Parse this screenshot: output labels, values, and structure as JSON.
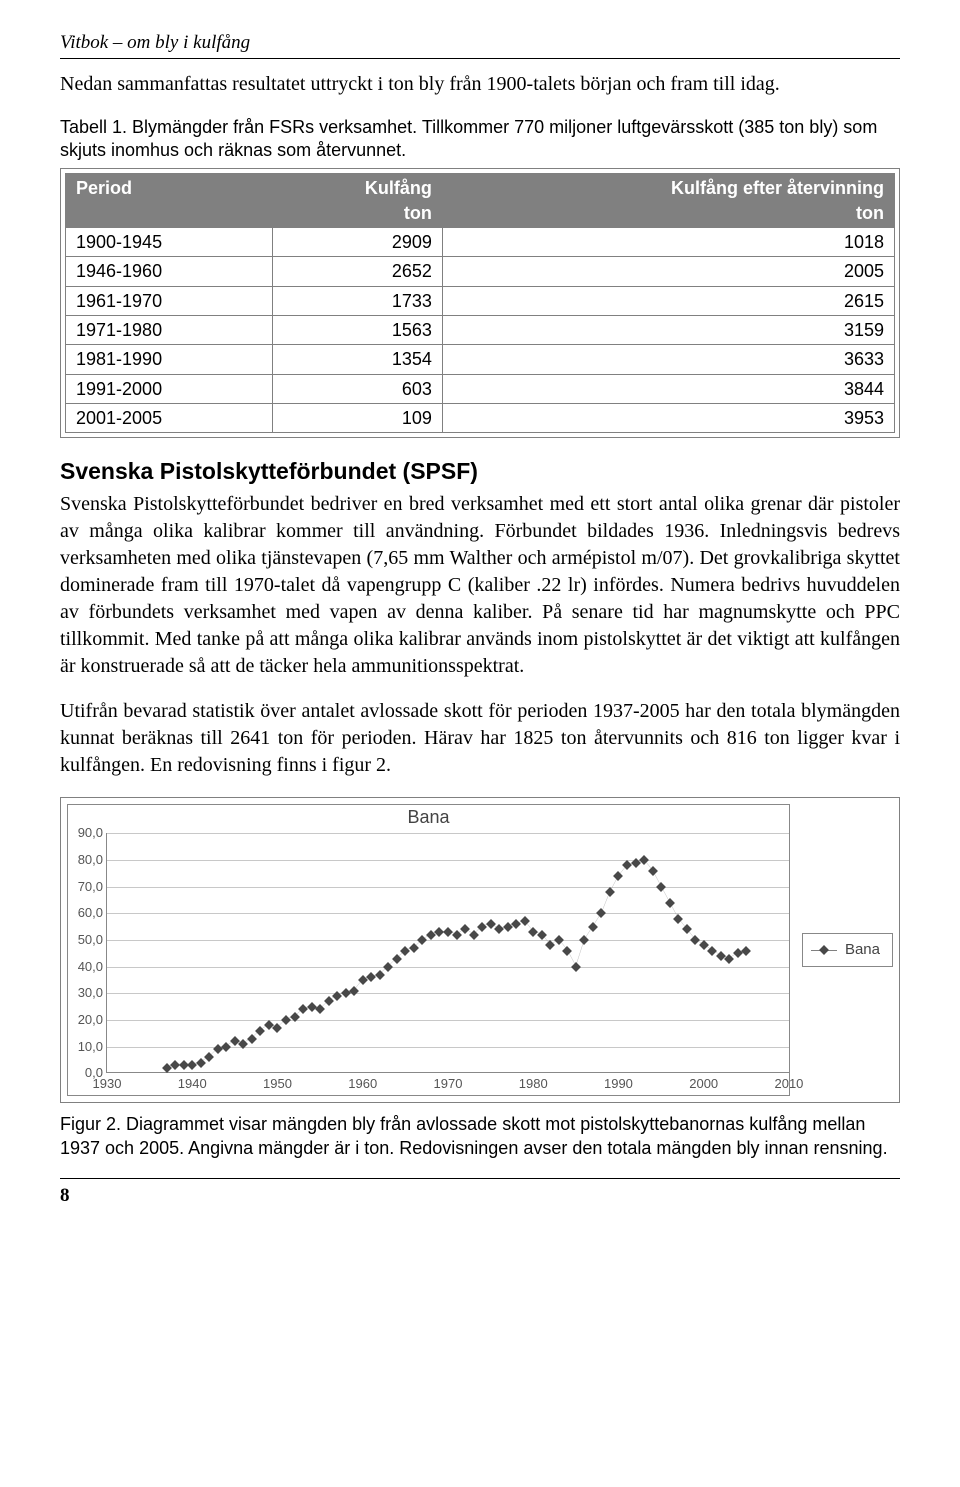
{
  "running_header": "Vitbok – om bly i kulfång",
  "intro": "Nedan sammanfattas resultatet uttryckt i ton bly från 1900-talets början och fram till idag.",
  "table_caption": "Tabell 1. Blymängder från FSRs verksamhet. Tillkommer 770 miljoner luftgevärsskott (385 ton bly) som skjuts inomhus och räknas som återvunnet.",
  "table": {
    "header_bg": "#808080",
    "header_color": "#ffffff",
    "border_color": "#808080",
    "columns": [
      "Period",
      "Kulfång\nton",
      "Kulfång efter återvinning\nton"
    ],
    "rows": [
      [
        "1900-1945",
        "2909",
        "1018"
      ],
      [
        "1946-1960",
        "2652",
        "2005"
      ],
      [
        "1961-1970",
        "1733",
        "2615"
      ],
      [
        "1971-1980",
        "1563",
        "3159"
      ],
      [
        "1981-1990",
        "1354",
        "3633"
      ],
      [
        "1991-2000",
        "603",
        "3844"
      ],
      [
        "2001-2005",
        "109",
        "3953"
      ]
    ]
  },
  "section_heading": "Svenska Pistolskytteförbundet (SPSF)",
  "body1": "Svenska Pistolskytteförbundet bedriver en bred verksamhet med ett stort antal olika grenar där pistoler av många olika kalibrar kommer till användning. Förbundet bildades 1936. Inledningsvis bedrevs verksamheten med olika tjänstevapen (7,65 mm Walther och armépistol m/07). Det grovkalibriga skyttet dominerade fram till 1970-talet då vapengrupp C (kaliber .22 lr) infördes. Numera bedrivs huvuddelen av förbundets verksamhet med vapen av denna kaliber. På senare tid har magnumskytte och PPC tillkommit. Med tanke på att många olika kalibrar används inom pistolskyttet är det viktigt att kulfången är konstruerade så att de täcker hela ammunitionsspektrat.",
  "body2": "Utifrån bevarad statistik över antalet avlossade skott för perioden 1937-2005 har den totala blymängden kunnat beräknas till 2641 ton för perioden. Härav har 1825 ton återvunnits och 816 ton ligger kvar i kulfången. En redovisning finns i figur 2.",
  "chart": {
    "title": "Bana",
    "legend_label": "Bana",
    "type": "line",
    "marker": "diamond",
    "marker_color": "#484848",
    "line_color": "#808080",
    "grid_color": "#c8c8c8",
    "axis_color": "#888888",
    "text_color": "#555555",
    "background": "#ffffff",
    "title_fontsize": 18,
    "label_fontsize": 13,
    "xlim": [
      1930,
      2010
    ],
    "ylim": [
      0,
      90
    ],
    "ytick_step": 10,
    "yticks": [
      "0,0",
      "10,0",
      "20,0",
      "30,0",
      "40,0",
      "50,0",
      "60,0",
      "70,0",
      "80,0",
      "90,0"
    ],
    "xticks": [
      1930,
      1940,
      1950,
      1960,
      1970,
      1980,
      1990,
      2000,
      2010
    ],
    "points": [
      {
        "x": 1937,
        "y": 2
      },
      {
        "x": 1938,
        "y": 3
      },
      {
        "x": 1939,
        "y": 3
      },
      {
        "x": 1940,
        "y": 3
      },
      {
        "x": 1941,
        "y": 4
      },
      {
        "x": 1942,
        "y": 6
      },
      {
        "x": 1943,
        "y": 9
      },
      {
        "x": 1944,
        "y": 10
      },
      {
        "x": 1945,
        "y": 12
      },
      {
        "x": 1946,
        "y": 11
      },
      {
        "x": 1947,
        "y": 13
      },
      {
        "x": 1948,
        "y": 16
      },
      {
        "x": 1949,
        "y": 18
      },
      {
        "x": 1950,
        "y": 17
      },
      {
        "x": 1951,
        "y": 20
      },
      {
        "x": 1952,
        "y": 21
      },
      {
        "x": 1953,
        "y": 24
      },
      {
        "x": 1954,
        "y": 25
      },
      {
        "x": 1955,
        "y": 24
      },
      {
        "x": 1956,
        "y": 27
      },
      {
        "x": 1957,
        "y": 29
      },
      {
        "x": 1958,
        "y": 30
      },
      {
        "x": 1959,
        "y": 31
      },
      {
        "x": 1960,
        "y": 35
      },
      {
        "x": 1961,
        "y": 36
      },
      {
        "x": 1962,
        "y": 37
      },
      {
        "x": 1963,
        "y": 40
      },
      {
        "x": 1964,
        "y": 43
      },
      {
        "x": 1965,
        "y": 46
      },
      {
        "x": 1966,
        "y": 47
      },
      {
        "x": 1967,
        "y": 50
      },
      {
        "x": 1968,
        "y": 52
      },
      {
        "x": 1969,
        "y": 53
      },
      {
        "x": 1970,
        "y": 53
      },
      {
        "x": 1971,
        "y": 52
      },
      {
        "x": 1972,
        "y": 54
      },
      {
        "x": 1973,
        "y": 52
      },
      {
        "x": 1974,
        "y": 55
      },
      {
        "x": 1975,
        "y": 56
      },
      {
        "x": 1976,
        "y": 54
      },
      {
        "x": 1977,
        "y": 55
      },
      {
        "x": 1978,
        "y": 56
      },
      {
        "x": 1979,
        "y": 57
      },
      {
        "x": 1980,
        "y": 53
      },
      {
        "x": 1981,
        "y": 52
      },
      {
        "x": 1982,
        "y": 48
      },
      {
        "x": 1983,
        "y": 50
      },
      {
        "x": 1984,
        "y": 46
      },
      {
        "x": 1985,
        "y": 40
      },
      {
        "x": 1986,
        "y": 50
      },
      {
        "x": 1987,
        "y": 55
      },
      {
        "x": 1988,
        "y": 60
      },
      {
        "x": 1989,
        "y": 68
      },
      {
        "x": 1990,
        "y": 74
      },
      {
        "x": 1991,
        "y": 78
      },
      {
        "x": 1992,
        "y": 79
      },
      {
        "x": 1993,
        "y": 80
      },
      {
        "x": 1994,
        "y": 76
      },
      {
        "x": 1995,
        "y": 70
      },
      {
        "x": 1996,
        "y": 64
      },
      {
        "x": 1997,
        "y": 58
      },
      {
        "x": 1998,
        "y": 54
      },
      {
        "x": 1999,
        "y": 50
      },
      {
        "x": 2000,
        "y": 48
      },
      {
        "x": 2001,
        "y": 46
      },
      {
        "x": 2002,
        "y": 44
      },
      {
        "x": 2003,
        "y": 43
      },
      {
        "x": 2004,
        "y": 45
      },
      {
        "x": 2005,
        "y": 46
      }
    ]
  },
  "chart_caption": "Figur 2. Diagrammet visar mängden bly från avlossade skott mot pistolskyttebanornas kulfång mellan 1937 och 2005. Angivna mängder är i ton. Redovisningen avser den totala mängden bly innan rensning.",
  "page_number": "8"
}
